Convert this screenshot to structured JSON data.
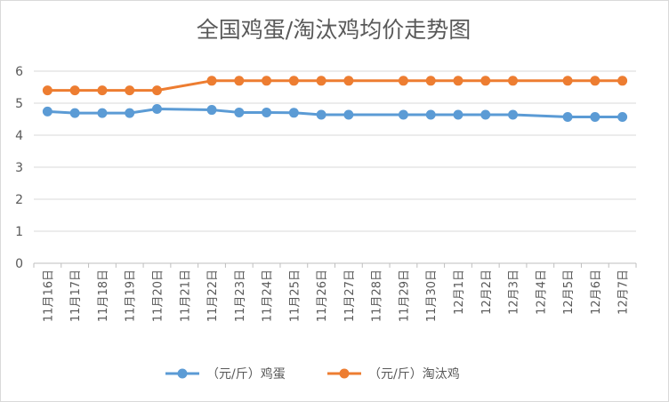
{
  "chart_data": {
    "type": "line",
    "title": "全国鸡蛋/淘汰鸡均价走势图",
    "categories": [
      "11月16日",
      "11月17日",
      "11月18日",
      "11月19日",
      "11月20日",
      "11月21日",
      "11月22日",
      "11月23日",
      "11月24日",
      "11月25日",
      "11月26日",
      "11月27日",
      "11月28日",
      "11月29日",
      "11月30日",
      "12月1日",
      "12月2日",
      "12月3日",
      "12月4日",
      "12月5日",
      "12月6日",
      "12月7日"
    ],
    "series": [
      {
        "name": "（元/斤）鸡蛋",
        "color": "#5b9bd5",
        "values": [
          4.74,
          4.69,
          4.69,
          4.69,
          4.82,
          null,
          4.79,
          4.71,
          4.71,
          4.7,
          4.64,
          4.64,
          null,
          4.64,
          4.64,
          4.64,
          4.64,
          4.64,
          null,
          4.57,
          4.57,
          4.57
        ]
      },
      {
        "name": "（元/斤）淘汰鸡",
        "color": "#ed7d31",
        "values": [
          5.4,
          5.4,
          5.4,
          5.4,
          5.4,
          null,
          5.7,
          5.7,
          5.7,
          5.7,
          5.7,
          5.7,
          null,
          5.7,
          5.7,
          5.7,
          5.7,
          5.7,
          null,
          5.7,
          5.7,
          5.7
        ]
      }
    ],
    "ylim": [
      0,
      6
    ],
    "yticks": [
      "0",
      "1",
      "2",
      "3",
      "4",
      "5",
      "6"
    ],
    "grid": true,
    "legend_position": "bottom"
  }
}
